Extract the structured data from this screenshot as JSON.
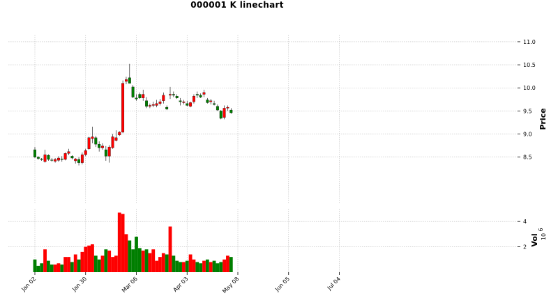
{
  "chart_data": {
    "type": "candlestick",
    "title": "000001 K linechart",
    "ylabel": "Price",
    "volume_label": "Vol",
    "volume_exponent": "10",
    "volume_exponent_power": "6",
    "ylim": [
      7.5,
      11.15
    ],
    "volume_ylim": [
      0,
      5.0
    ],
    "price_ticks": [
      "8.5",
      "9.0",
      "9.5",
      "10.0",
      "10.5",
      "11.0"
    ],
    "volume_ticks": [
      "2",
      "4"
    ],
    "x_ticks": [
      {
        "label": "Jan 02",
        "index": 0
      },
      {
        "label": "Jan 30",
        "index": 15
      },
      {
        "label": "Mar 06",
        "index": 30
      },
      {
        "label": "Apr 03",
        "index": 45
      },
      {
        "label": "May 08",
        "index": 60
      },
      {
        "label": "Jun 05",
        "index": 75
      },
      {
        "label": "Jul 04",
        "index": 90
      }
    ],
    "grid": true,
    "up_color": "#fe0000",
    "down_color": "#007e00",
    "series": [
      [
        8.66,
        8.72,
        8.48,
        8.5,
        1.0
      ],
      [
        8.5,
        8.52,
        8.44,
        8.47,
        0.5
      ],
      [
        8.46,
        8.48,
        8.42,
        8.45,
        0.7
      ],
      [
        8.4,
        8.66,
        8.38,
        8.55,
        1.8
      ],
      [
        8.54,
        8.56,
        8.42,
        8.45,
        0.9
      ],
      [
        8.44,
        8.48,
        8.4,
        8.43,
        0.6
      ],
      [
        8.41,
        8.48,
        8.38,
        8.45,
        0.6
      ],
      [
        8.43,
        8.52,
        8.4,
        8.48,
        0.7
      ],
      [
        8.46,
        8.52,
        8.4,
        8.45,
        0.6
      ],
      [
        8.45,
        8.6,
        8.43,
        8.58,
        1.2
      ],
      [
        8.58,
        8.68,
        8.54,
        8.62,
        1.2
      ],
      [
        8.52,
        8.54,
        8.45,
        8.48,
        0.8
      ],
      [
        8.42,
        8.48,
        8.36,
        8.46,
        1.4
      ],
      [
        8.45,
        8.5,
        8.32,
        8.38,
        1.0
      ],
      [
        8.38,
        8.6,
        8.34,
        8.55,
        1.6
      ],
      [
        8.55,
        8.68,
        8.52,
        8.64,
        2.0
      ],
      [
        8.68,
        8.94,
        8.66,
        8.92,
        2.1
      ],
      [
        8.9,
        9.16,
        8.8,
        8.94,
        2.2
      ],
      [
        8.92,
        8.96,
        8.72,
        8.78,
        1.3
      ],
      [
        8.78,
        8.84,
        8.62,
        8.7,
        1.0
      ],
      [
        8.7,
        8.8,
        8.66,
        8.74,
        1.3
      ],
      [
        8.66,
        8.74,
        8.42,
        8.52,
        1.8
      ],
      [
        8.52,
        8.76,
        8.38,
        8.72,
        1.7
      ],
      [
        8.7,
        9.0,
        8.68,
        8.94,
        1.2
      ],
      [
        8.86,
        9.08,
        8.84,
        8.92,
        1.3
      ],
      [
        8.98,
        9.06,
        8.96,
        9.04,
        4.7
      ],
      [
        9.04,
        10.16,
        9.02,
        10.1,
        4.6
      ],
      [
        10.14,
        10.24,
        10.08,
        10.18,
        3.0
      ],
      [
        10.22,
        10.52,
        10.1,
        10.1,
        2.5
      ],
      [
        10.02,
        10.06,
        9.78,
        9.8,
        1.8
      ],
      [
        9.78,
        9.86,
        9.72,
        9.76,
        2.8
      ],
      [
        9.86,
        9.9,
        9.76,
        9.78,
        1.9
      ],
      [
        9.78,
        9.96,
        9.72,
        9.86,
        1.7
      ],
      [
        9.72,
        9.8,
        9.56,
        9.6,
        1.8
      ],
      [
        9.6,
        9.66,
        9.56,
        9.62,
        1.5
      ],
      [
        9.62,
        9.7,
        9.58,
        9.64,
        1.8
      ],
      [
        9.62,
        9.74,
        9.58,
        9.66,
        0.9
      ],
      [
        9.66,
        9.76,
        9.62,
        9.7,
        1.2
      ],
      [
        9.72,
        9.9,
        9.66,
        9.84,
        1.5
      ],
      [
        9.58,
        9.62,
        9.52,
        9.54,
        1.4
      ],
      [
        9.84,
        10.02,
        9.76,
        9.86,
        3.6
      ],
      [
        9.86,
        9.92,
        9.8,
        9.84,
        1.3
      ],
      [
        9.82,
        9.86,
        9.76,
        9.78,
        0.9
      ],
      [
        9.72,
        9.78,
        9.62,
        9.7,
        0.8
      ],
      [
        9.68,
        9.74,
        9.64,
        9.7,
        0.8
      ],
      [
        9.66,
        9.72,
        9.6,
        9.62,
        0.9
      ],
      [
        9.6,
        9.7,
        9.58,
        9.68,
        1.4
      ],
      [
        9.7,
        9.86,
        9.66,
        9.82,
        1.0
      ],
      [
        9.86,
        9.92,
        9.78,
        9.84,
        0.8
      ],
      [
        9.84,
        9.88,
        9.78,
        9.8,
        0.7
      ],
      [
        9.86,
        9.96,
        9.8,
        9.9,
        0.9
      ],
      [
        9.74,
        9.78,
        9.66,
        9.68,
        1.0
      ],
      [
        9.7,
        9.76,
        9.64,
        9.72,
        0.8
      ],
      [
        9.66,
        9.72,
        9.62,
        9.64,
        0.9
      ],
      [
        9.6,
        9.64,
        9.5,
        9.52,
        0.7
      ],
      [
        9.5,
        9.52,
        9.32,
        9.34,
        0.8
      ],
      [
        9.36,
        9.62,
        9.32,
        9.56,
        1.0
      ],
      [
        9.56,
        9.62,
        9.5,
        9.58,
        1.3
      ],
      [
        9.52,
        9.56,
        9.44,
        9.46,
        1.2
      ]
    ]
  }
}
